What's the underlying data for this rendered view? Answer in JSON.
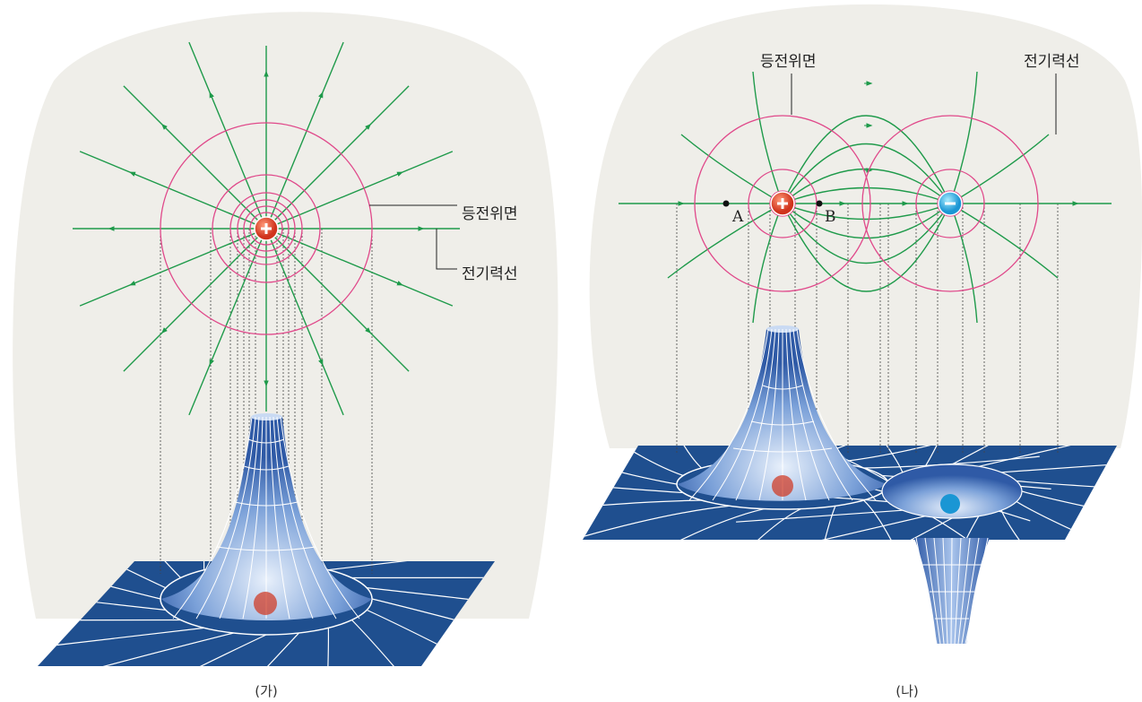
{
  "panels": [
    {
      "caption": "(가)",
      "labels": {
        "equipotential": "등전위면",
        "field_line": "전기력선"
      }
    },
    {
      "caption": "(나)",
      "labels": {
        "equipotential": "등전위면",
        "field_line": "전기력선"
      },
      "points": [
        "A",
        "B"
      ]
    }
  ]
}
